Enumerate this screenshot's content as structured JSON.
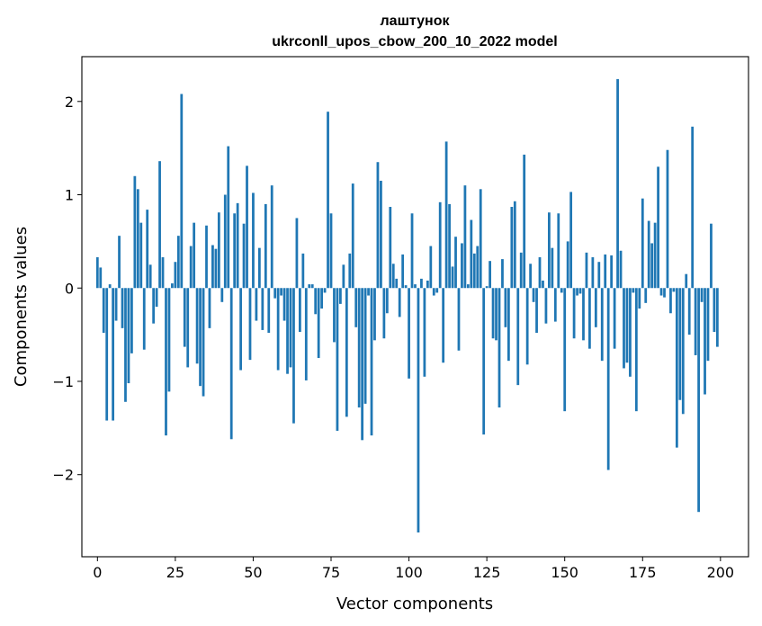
{
  "chart_data": {
    "type": "bar",
    "title": "лаштунок",
    "subtitle": "ukrconll_upos_cbow_200_10_2022 model",
    "xlabel": "Vector components",
    "ylabel": "Components values",
    "xlim": [
      -5,
      209
    ],
    "ylim": [
      -2.88,
      2.48
    ],
    "xticks": [
      0,
      25,
      50,
      75,
      100,
      125,
      150,
      175,
      200
    ],
    "xtick_labels": [
      "0",
      "25",
      "50",
      "75",
      "100",
      "125",
      "150",
      "175",
      "200"
    ],
    "yticks": [
      -2,
      -1,
      0,
      1,
      2
    ],
    "ytick_labels": [
      "−2",
      "−1",
      "0",
      "1",
      "2"
    ],
    "grid": false,
    "bar_color": "#1f77b4",
    "values": [
      0.33,
      0.22,
      -0.48,
      -1.42,
      0.04,
      -1.42,
      -0.35,
      0.56,
      -0.43,
      -1.22,
      -1.02,
      -0.7,
      1.2,
      1.06,
      0.7,
      -0.66,
      0.84,
      0.25,
      -0.38,
      -0.2,
      1.36,
      0.33,
      -1.58,
      -1.11,
      0.05,
      0.28,
      0.56,
      2.08,
      -0.63,
      -0.85,
      0.45,
      0.7,
      -0.81,
      -1.05,
      -1.16,
      0.67,
      -0.43,
      0.46,
      0.42,
      0.81,
      -0.15,
      1.0,
      1.52,
      -1.62,
      0.8,
      0.91,
      -0.88,
      0.69,
      1.31,
      -0.77,
      1.02,
      -0.35,
      0.43,
      -0.45,
      0.9,
      -0.48,
      1.1,
      -0.11,
      -0.88,
      -0.08,
      -0.35,
      -0.92,
      -0.85,
      -1.45,
      0.75,
      -0.47,
      0.37,
      -0.99,
      0.04,
      0.04,
      -0.28,
      -0.75,
      -0.22,
      -0.05,
      1.89,
      0.8,
      -0.58,
      -1.53,
      -0.17,
      0.25,
      -1.38,
      0.37,
      1.12,
      -0.42,
      -1.28,
      -1.63,
      -1.24,
      -0.08,
      -1.58,
      -0.56,
      1.35,
      1.15,
      -0.54,
      -0.27,
      0.87,
      0.26,
      0.1,
      -0.31,
      0.36,
      0.03,
      -0.97,
      0.8,
      0.04,
      -2.62,
      0.1,
      -0.95,
      0.08,
      0.45,
      -0.08,
      -0.05,
      0.92,
      -0.8,
      1.57,
      0.9,
      0.23,
      0.55,
      -0.67,
      0.48,
      1.1,
      0.04,
      0.73,
      0.37,
      0.45,
      1.06,
      -1.57,
      0.02,
      0.29,
      -0.54,
      -0.56,
      -1.28,
      0.31,
      -0.42,
      -0.78,
      0.87,
      0.93,
      -1.04,
      0.38,
      1.43,
      -0.82,
      0.26,
      -0.15,
      -0.48,
      0.33,
      0.08,
      -0.38,
      0.81,
      0.43,
      -0.36,
      0.8,
      -0.05,
      -1.32,
      0.5,
      1.03,
      -0.54,
      -0.08,
      -0.06,
      -0.56,
      0.38,
      -0.65,
      0.33,
      -0.42,
      0.28,
      -0.78,
      0.36,
      -1.95,
      0.35,
      -0.65,
      2.24,
      0.4,
      -0.86,
      -0.8,
      -0.95,
      -0.05,
      -1.32,
      -0.22,
      0.96,
      -0.16,
      0.72,
      0.48,
      0.7,
      1.3,
      -0.08,
      -0.1,
      1.48,
      -0.27,
      -0.04,
      -1.71,
      -1.2,
      -1.35,
      0.15,
      -0.5,
      1.73,
      -0.72,
      -2.4,
      -0.15,
      -1.14,
      -0.78,
      0.69,
      -0.47,
      -0.63
    ]
  }
}
